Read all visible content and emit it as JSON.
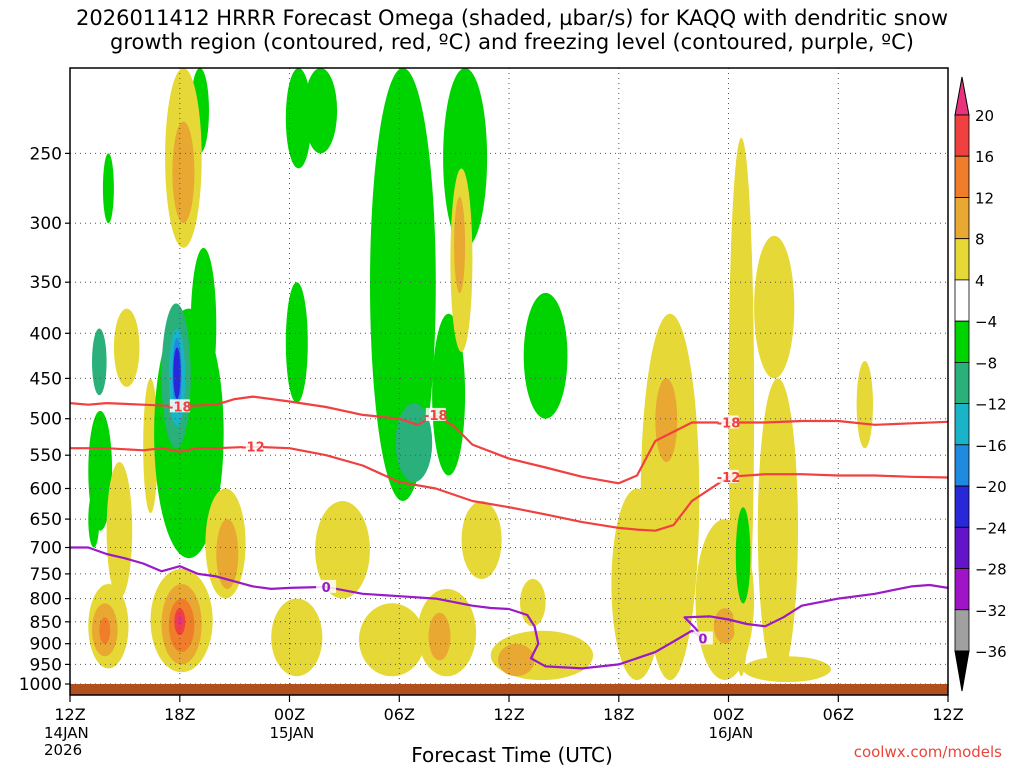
{
  "title_line1": "2026011412 HRRR Forecast Omega (shaded, µbar/s) for KAQQ with dendritic snow",
  "title_line2": "growth region (contoured, red, ºC) and freezing level (contoured, purple, ºC)",
  "credit": "coolwx.com/models",
  "chart_data": {
    "type": "heatmap",
    "title": "2026011412 HRRR Forecast Omega (shaded, µbar/s) for KAQQ with dendritic snow growth region (contoured, red, ºC) and freezing level (contoured, purple, ºC)",
    "xlabel": "Forecast Time (UTC)",
    "ylabel": "",
    "x_range_hours": [
      0,
      48
    ],
    "y_range_hPa": [
      1000,
      200
    ],
    "x_ticks": [
      {
        "h": 0,
        "label": "12Z",
        "date": "14JAN",
        "year": "2026"
      },
      {
        "h": 6,
        "label": "18Z"
      },
      {
        "h": 12,
        "label": "00Z",
        "date": "15JAN"
      },
      {
        "h": 18,
        "label": "06Z"
      },
      {
        "h": 24,
        "label": "12Z"
      },
      {
        "h": 30,
        "label": "18Z"
      },
      {
        "h": 36,
        "label": "00Z",
        "date": "16JAN"
      },
      {
        "h": 42,
        "label": "06Z"
      },
      {
        "h": 48,
        "label": "12Z"
      }
    ],
    "y_ticks": [
      250,
      300,
      350,
      400,
      450,
      500,
      550,
      600,
      650,
      700,
      750,
      800,
      850,
      900,
      950,
      1000
    ],
    "colorbar": {
      "levels": [
        20,
        16,
        12,
        8,
        4,
        -4,
        -8,
        -12,
        -16,
        -20,
        -24,
        -28,
        -32,
        -36
      ],
      "colors": [
        "#e8327d",
        "#f04040",
        "#f07d2a",
        "#e8a832",
        "#e6d836",
        "#ffffff",
        "#00d400",
        "#2ab07a",
        "#1ab4c8",
        "#1f8ae0",
        "#2828d8",
        "#6414c8",
        "#a014c8",
        "#a0a0a0",
        "#000000"
      ]
    },
    "omega_regions": [
      {
        "v": -8,
        "x": [
          1.0,
          2.3
        ],
        "p": [
          490,
          670
        ]
      },
      {
        "v": -12,
        "x": [
          1.2,
          2.0
        ],
        "p": [
          395,
          470
        ]
      },
      {
        "v": -8,
        "x": [
          1.0,
          1.6
        ],
        "p": [
          605,
          700
        ]
      },
      {
        "v": -8,
        "x": [
          1.8,
          2.4
        ],
        "p": [
          250,
          300
        ]
      },
      {
        "v": 4,
        "x": [
          2.4,
          3.8
        ],
        "p": [
          375,
          460
        ]
      },
      {
        "v": 4,
        "x": [
          1.0,
          3.2
        ],
        "p": [
          770,
          960
        ]
      },
      {
        "v": 8,
        "x": [
          1.2,
          2.6
        ],
        "p": [
          810,
          930
        ]
      },
      {
        "v": 12,
        "x": [
          1.6,
          2.2
        ],
        "p": [
          840,
          900
        ]
      },
      {
        "v": 4,
        "x": [
          2.0,
          3.4
        ],
        "p": [
          560,
          800
        ]
      },
      {
        "v": 4,
        "x": [
          4.0,
          4.8
        ],
        "p": [
          450,
          640
        ]
      },
      {
        "v": -8,
        "x": [
          4.6,
          8.4
        ],
        "p": [
          375,
          720
        ]
      },
      {
        "v": -12,
        "x": [
          5.0,
          6.6
        ],
        "p": [
          370,
          540
        ]
      },
      {
        "v": -16,
        "x": [
          5.4,
          6.3
        ],
        "p": [
          395,
          510
        ]
      },
      {
        "v": -20,
        "x": [
          5.6,
          6.1
        ],
        "p": [
          405,
          490
        ]
      },
      {
        "v": -24,
        "x": [
          5.65,
          6.05
        ],
        "p": [
          415,
          475
        ]
      },
      {
        "v": -8,
        "x": [
          6.6,
          7.6
        ],
        "p": [
          200,
          250
        ]
      },
      {
        "v": -8,
        "x": [
          6.6,
          8.0
        ],
        "p": [
          320,
          480
        ]
      },
      {
        "v": 4,
        "x": [
          4.4,
          7.8
        ],
        "p": [
          740,
          970
        ]
      },
      {
        "v": 8,
        "x": [
          5.0,
          7.2
        ],
        "p": [
          770,
          950
        ]
      },
      {
        "v": 12,
        "x": [
          5.4,
          6.8
        ],
        "p": [
          800,
          920
        ]
      },
      {
        "v": 16,
        "x": [
          5.7,
          6.3
        ],
        "p": [
          820,
          880
        ]
      },
      {
        "v": 20,
        "x": [
          5.85,
          6.15
        ],
        "p": [
          835,
          860
        ]
      },
      {
        "v": 4,
        "x": [
          5.2,
          7.2
        ],
        "p": [
          200,
          320
        ]
      },
      {
        "v": 8,
        "x": [
          5.6,
          6.8
        ],
        "p": [
          230,
          300
        ]
      },
      {
        "v": 4,
        "x": [
          7.4,
          9.6
        ],
        "p": [
          600,
          800
        ]
      },
      {
        "v": 8,
        "x": [
          8.0,
          9.2
        ],
        "p": [
          650,
          780
        ]
      },
      {
        "v": -8,
        "x": [
          11.8,
          13.2
        ],
        "p": [
          200,
          260
        ]
      },
      {
        "v": -8,
        "x": [
          12.8,
          14.6
        ],
        "p": [
          200,
          250
        ]
      },
      {
        "v": -8,
        "x": [
          11.8,
          13.0
        ],
        "p": [
          350,
          480
        ]
      },
      {
        "v": 4,
        "x": [
          11.0,
          13.8
        ],
        "p": [
          800,
          980
        ]
      },
      {
        "v": 4,
        "x": [
          13.4,
          16.4
        ],
        "p": [
          620,
          800
        ]
      },
      {
        "v": -8,
        "x": [
          16.4,
          20.0
        ],
        "p": [
          200,
          620
        ]
      },
      {
        "v": -12,
        "x": [
          17.8,
          19.8
        ],
        "p": [
          480,
          590
        ]
      },
      {
        "v": -8,
        "x": [
          20.4,
          22.8
        ],
        "p": [
          200,
          320
        ]
      },
      {
        "v": -8,
        "x": [
          19.8,
          21.6
        ],
        "p": [
          380,
          580
        ]
      },
      {
        "v": 4,
        "x": [
          20.8,
          22.0
        ],
        "p": [
          260,
          420
        ]
      },
      {
        "v": 8,
        "x": [
          21.0,
          21.6
        ],
        "p": [
          280,
          360
        ]
      },
      {
        "v": 4,
        "x": [
          15.8,
          19.4
        ],
        "p": [
          810,
          980
        ]
      },
      {
        "v": 4,
        "x": [
          19.0,
          22.2
        ],
        "p": [
          780,
          980
        ]
      },
      {
        "v": 8,
        "x": [
          19.6,
          20.8
        ],
        "p": [
          830,
          940
        ]
      },
      {
        "v": 4,
        "x": [
          21.4,
          23.6
        ],
        "p": [
          620,
          760
        ]
      },
      {
        "v": 4,
        "x": [
          23.0,
          28.6
        ],
        "p": [
          870,
          990
        ]
      },
      {
        "v": 8,
        "x": [
          23.4,
          25.4
        ],
        "p": [
          900,
          980
        ]
      },
      {
        "v": 4,
        "x": [
          24.6,
          26.0
        ],
        "p": [
          760,
          860
        ]
      },
      {
        "v": -8,
        "x": [
          24.8,
          27.2
        ],
        "p": [
          360,
          500
        ]
      },
      {
        "v": 4,
        "x": [
          29.6,
          32.4
        ],
        "p": [
          600,
          990
        ]
      },
      {
        "v": 4,
        "x": [
          31.2,
          34.4
        ],
        "p": [
          380,
          990
        ]
      },
      {
        "v": 8,
        "x": [
          32.0,
          33.2
        ],
        "p": [
          450,
          560
        ]
      },
      {
        "v": 4,
        "x": [
          34.2,
          37.4
        ],
        "p": [
          650,
          990
        ]
      },
      {
        "v": 8,
        "x": [
          35.2,
          36.4
        ],
        "p": [
          820,
          900
        ]
      },
      {
        "v": 4,
        "x": [
          36.0,
          37.4
        ],
        "p": [
          240,
          980
        ]
      },
      {
        "v": -8,
        "x": [
          36.4,
          37.2
        ],
        "p": [
          630,
          810
        ]
      },
      {
        "v": 4,
        "x": [
          37.6,
          39.8
        ],
        "p": [
          450,
          990
        ]
      },
      {
        "v": 4,
        "x": [
          36.8,
          41.6
        ],
        "p": [
          930,
          995
        ]
      },
      {
        "v": 4,
        "x": [
          43.0,
          43.9
        ],
        "p": [
          430,
          540
        ]
      },
      {
        "v": 4,
        "x": [
          37.4,
          39.6
        ],
        "p": [
          310,
          450
        ]
      }
    ],
    "contours": [
      {
        "label": "-18",
        "color": "#f04040",
        "x": [
          0,
          1,
          2,
          4,
          6,
          8,
          9,
          10,
          12,
          14,
          16,
          18,
          19,
          20,
          21,
          22,
          24,
          26,
          28,
          30,
          31,
          32,
          34,
          36,
          38,
          40,
          42,
          44,
          46,
          48
        ],
        "p": [
          480,
          482,
          480,
          482,
          484,
          482,
          475,
          472,
          478,
          485,
          495,
          500,
          508,
          495,
          510,
          535,
          555,
          568,
          582,
          592,
          580,
          530,
          505,
          505,
          505,
          503,
          503,
          508,
          506,
          504
        ]
      },
      {
        "label": "-12",
        "color": "#f04040",
        "x": [
          0,
          2,
          4,
          5,
          6,
          7,
          8,
          10,
          12,
          14,
          16,
          18,
          20,
          22,
          24,
          26,
          28,
          30,
          31,
          32,
          33,
          34,
          36,
          38,
          40,
          42,
          44,
          46,
          48
        ],
        "p": [
          540,
          540,
          543,
          540,
          545,
          540,
          540,
          538,
          540,
          550,
          565,
          590,
          600,
          620,
          630,
          642,
          655,
          665,
          668,
          670,
          660,
          620,
          582,
          578,
          578,
          580,
          580,
          582,
          583
        ]
      },
      {
        "label": "0",
        "color": "#9a1ac8",
        "x": [
          0,
          1,
          2,
          3,
          4,
          5,
          6,
          7,
          8,
          10,
          11,
          12,
          14,
          16,
          18,
          20,
          22,
          23,
          24,
          25,
          25.4,
          25.6,
          25.2,
          26,
          28,
          30,
          32,
          33,
          34,
          34.6,
          34.2,
          33.6,
          35,
          36,
          37,
          38,
          39,
          40,
          42,
          44,
          46,
          47,
          48
        ],
        "p": [
          700,
          700,
          712,
          720,
          730,
          745,
          735,
          750,
          755,
          775,
          780,
          778,
          776,
          790,
          795,
          800,
          815,
          820,
          822,
          835,
          860,
          900,
          935,
          955,
          960,
          950,
          920,
          895,
          870,
          888,
          865,
          840,
          838,
          845,
          855,
          860,
          840,
          815,
          800,
          790,
          775,
          772,
          778
        ]
      }
    ]
  }
}
